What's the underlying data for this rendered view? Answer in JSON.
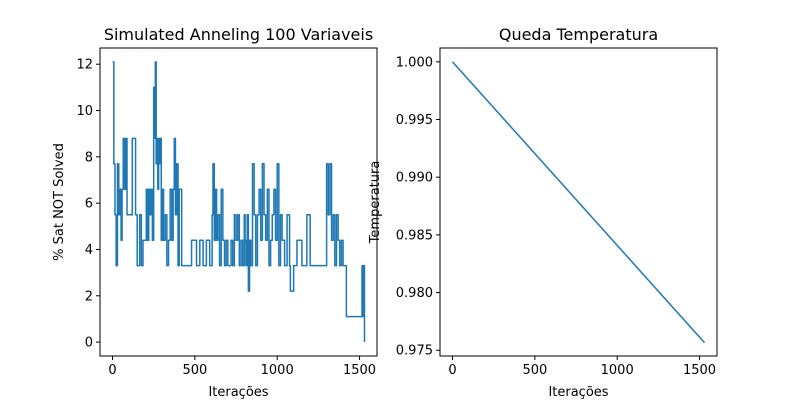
{
  "chart_data": [
    {
      "type": "line",
      "title": "Simulated Anneling 100 Variaveis",
      "xlabel": "Iterações",
      "ylabel": "% Sat NOT Solved",
      "xlim": [
        -76,
        1606
      ],
      "ylim": [
        -0.6,
        12.7
      ],
      "xticks": [
        0,
        500,
        1000,
        1500
      ],
      "yticks": [
        0,
        2,
        4,
        6,
        8,
        10,
        12
      ],
      "ytick_labels": [
        "0",
        "2",
        "4",
        "6",
        "8",
        "10",
        "12"
      ],
      "grid": false,
      "color": "#1f77b4",
      "series": [
        {
          "x": [
            0,
            8,
            15,
            22,
            30,
            38,
            45,
            52,
            58,
            65,
            72,
            80,
            88,
            95,
            100,
            108,
            120,
            140,
            150,
            158,
            165,
            175,
            185,
            195,
            205,
            212,
            220,
            228,
            235,
            242,
            250,
            255,
            260,
            265,
            270,
            275,
            280,
            285,
            290,
            296,
            302,
            310,
            320,
            330,
            340,
            350,
            360,
            368,
            375,
            382,
            390,
            398,
            405,
            420,
            450,
            480,
            500,
            510,
            530,
            550,
            570,
            590,
            605,
            610,
            618,
            625,
            632,
            640,
            650,
            660,
            670,
            680,
            690,
            700,
            710,
            720,
            730,
            740,
            750,
            760,
            770,
            780,
            790,
            800,
            805,
            810,
            818,
            825,
            832,
            840,
            850,
            860,
            870,
            880,
            890,
            900,
            910,
            920,
            930,
            940,
            950,
            960,
            970,
            980,
            990,
            1000,
            1010,
            1020,
            1030,
            1045,
            1060,
            1075,
            1080,
            1090,
            1100,
            1120,
            1150,
            1180,
            1200,
            1220,
            1240,
            1260,
            1280,
            1295,
            1300,
            1310,
            1320,
            1330,
            1340,
            1350,
            1360,
            1370,
            1380,
            1390,
            1400,
            1420,
            1450,
            1480,
            1500,
            1510,
            1515,
            1520,
            1525,
            1530
          ],
          "y": [
            12.1,
            7.7,
            5.5,
            3.3,
            7.7,
            5.5,
            6.6,
            4.4,
            6.6,
            8.8,
            6.6,
            8.8,
            5.5,
            5.5,
            5.5,
            5.5,
            8.8,
            5.5,
            3.3,
            3.3,
            5.5,
            3.3,
            4.4,
            4.4,
            6.6,
            4.4,
            6.6,
            5.5,
            6.6,
            4.4,
            11.0,
            8.8,
            12.1,
            7.7,
            8.8,
            6.6,
            8.8,
            7.7,
            8.8,
            4.4,
            6.6,
            4.4,
            5.5,
            3.3,
            4.4,
            6.6,
            4.4,
            6.6,
            8.8,
            5.5,
            7.7,
            3.3,
            6.6,
            3.3,
            3.3,
            4.4,
            4.4,
            3.3,
            4.4,
            3.3,
            4.4,
            3.3,
            5.5,
            7.7,
            4.4,
            6.6,
            4.4,
            5.5,
            3.3,
            6.6,
            4.4,
            3.3,
            4.4,
            3.3,
            3.3,
            4.4,
            3.3,
            5.5,
            4.4,
            5.5,
            3.3,
            4.4,
            3.3,
            5.5,
            4.4,
            3.3,
            5.5,
            2.2,
            4.4,
            3.3,
            7.7,
            5.5,
            3.3,
            5.5,
            6.6,
            4.4,
            7.7,
            5.5,
            4.4,
            6.6,
            3.3,
            4.4,
            5.5,
            6.6,
            4.4,
            7.7,
            3.3,
            5.5,
            4.4,
            3.3,
            5.5,
            3.3,
            2.2,
            2.2,
            3.3,
            4.4,
            3.3,
            5.5,
            3.3,
            3.3,
            3.3,
            3.3,
            3.3,
            3.3,
            7.7,
            5.5,
            7.7,
            4.4,
            5.5,
            3.3,
            5.5,
            4.4,
            3.3,
            4.4,
            3.3,
            1.1,
            1.1,
            1.1,
            1.1,
            1.1,
            3.3,
            1.1,
            3.3,
            0.0
          ]
        }
      ]
    },
    {
      "type": "line",
      "title": "Queda Temperatura",
      "xlabel": "Iterações",
      "ylabel": "Temperatura",
      "xlim": [
        -76,
        1606
      ],
      "ylim": [
        0.9745,
        1.0012
      ],
      "xticks": [
        0,
        500,
        1000,
        1500
      ],
      "yticks": [
        0.975,
        0.98,
        0.985,
        0.99,
        0.995,
        1.0
      ],
      "ytick_labels": [
        "0.975",
        "0.980",
        "0.985",
        "0.990",
        "0.995",
        "1.000"
      ],
      "grid": false,
      "color": "#1f77b4",
      "series": [
        {
          "x": [
            0,
            1530
          ],
          "y": [
            1.0,
            0.97566
          ]
        }
      ]
    }
  ]
}
